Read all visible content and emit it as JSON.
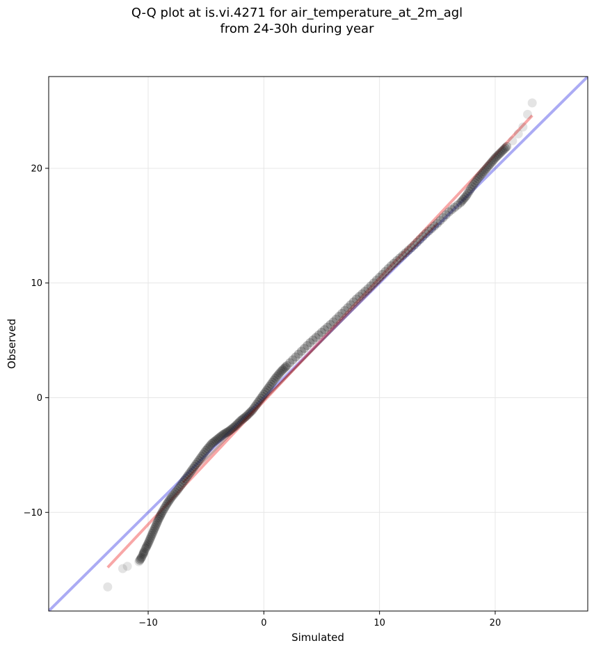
{
  "chart_data": {
    "type": "scatter",
    "title": "Q-Q plot at is.vi.4271 for air_temperature_at_2m_agl",
    "subtitle": "from 24-30h during year",
    "xlabel": "Simulated",
    "ylabel": "Observed",
    "xlim": [
      -18.6,
      28.0
    ],
    "ylim": [
      -18.6,
      28.0
    ],
    "x_ticks": [
      -10,
      0,
      10,
      20
    ],
    "y_ticks": [
      -10,
      0,
      10,
      20
    ],
    "x_tick_labels": [
      "−10",
      "0",
      "10",
      "20"
    ],
    "y_tick_labels": [
      "−10",
      "0",
      "10",
      "20"
    ],
    "grid": true,
    "reference_line": {
      "type": "y=x",
      "color": "#0000dd"
    },
    "fit_line": {
      "color": "#ee2222",
      "x": [
        -13.5,
        23.2
      ],
      "y": [
        -14.8,
        24.6
      ]
    },
    "quantile_points": {
      "x": [
        -13.5,
        -12.2,
        -11.8,
        -10.8,
        -10.5,
        -10.3,
        -10.0,
        -9.7,
        -9.4,
        -9.1,
        -8.8,
        -8.4,
        -8.0,
        -7.5,
        -7.0,
        -6.5,
        -6.0,
        -5.5,
        -5.0,
        -4.5,
        -4.0,
        -3.5,
        -3.0,
        -2.5,
        -2.0,
        -1.5,
        -1.0,
        -0.5,
        0.0,
        0.5,
        1.0,
        1.5,
        2.0,
        3.0,
        4.0,
        5.0,
        6.0,
        7.0,
        8.0,
        9.0,
        10.0,
        11.0,
        12.0,
        13.0,
        14.0,
        15.0,
        16.0,
        17.0,
        17.5,
        18.0,
        18.5,
        19.0,
        19.5,
        20.0,
        20.5,
        21.0,
        21.5,
        22.0,
        22.4,
        22.8,
        23.2
      ],
      "y": [
        -16.5,
        -14.9,
        -14.7,
        -14.3,
        -13.8,
        -13.3,
        -12.7,
        -12.0,
        -11.3,
        -10.6,
        -10.0,
        -9.3,
        -8.7,
        -8.1,
        -7.4,
        -6.7,
        -6.0,
        -5.3,
        -4.6,
        -4.0,
        -3.6,
        -3.2,
        -2.9,
        -2.5,
        -2.0,
        -1.6,
        -1.1,
        -0.4,
        0.3,
        1.0,
        1.7,
        2.3,
        2.8,
        3.8,
        4.8,
        5.7,
        6.6,
        7.6,
        8.6,
        9.5,
        10.5,
        11.5,
        12.4,
        13.3,
        14.3,
        15.2,
        16.2,
        17.0,
        17.6,
        18.4,
        19.1,
        19.7,
        20.3,
        20.9,
        21.4,
        21.9,
        22.4,
        23.0,
        23.6,
        24.7,
        25.7
      ]
    }
  }
}
